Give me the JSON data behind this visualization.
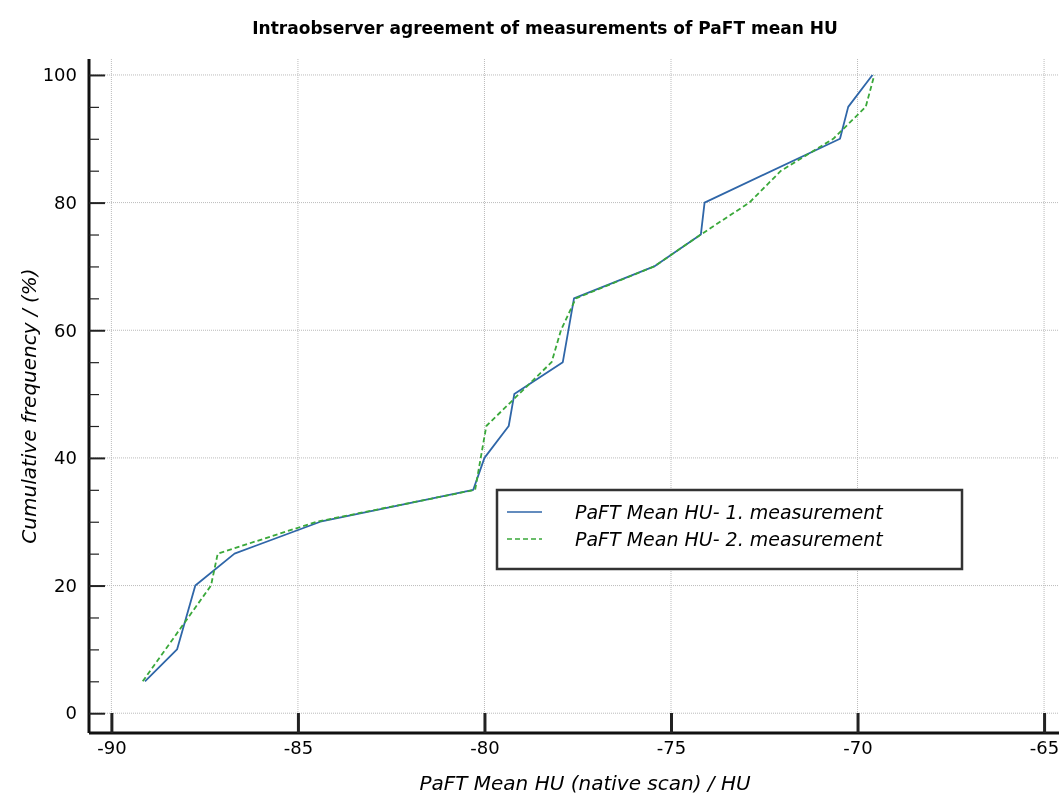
{
  "chart_data": {
    "type": "line",
    "title": "Intraobserver agreement of measurements of PaFT mean HU",
    "xlabel": "PaFT Mean HU (native scan) / HU",
    "ylabel": "Cumulative  frequency / (%)",
    "xlim": [
      -90.6,
      -64.6
    ],
    "xticks": [
      -90,
      -85,
      -80,
      -75,
      -70,
      -65
    ],
    "ylim": [
      -3.1,
      102.5
    ],
    "yticks": [
      0,
      {
        "value": 5,
        "label": null
      },
      {
        "value": 10,
        "label": null
      },
      {
        "value": 15,
        "label": null
      },
      20,
      {
        "value": 25,
        "label": null
      },
      {
        "value": 30,
        "label": null
      },
      {
        "value": 35,
        "label": null
      },
      40,
      {
        "value": 45,
        "label": null
      },
      {
        "value": 50,
        "label": null
      },
      {
        "value": 55,
        "label": null
      },
      60,
      {
        "value": 65,
        "label": null
      },
      {
        "value": 70,
        "label": null
      },
      {
        "value": 75,
        "label": null
      },
      80,
      {
        "value": 85,
        "label": null
      },
      {
        "value": 90,
        "label": null
      },
      {
        "value": 95,
        "label": null
      },
      100
    ],
    "grid": true,
    "legend": "right",
    "marker": "none",
    "series": [
      {
        "name": "PaFT Mean HU- 1. measurement",
        "color": "#2f66a8",
        "line_style": "solid",
        "x": [
          -89.1,
          -88.24,
          -87.75,
          -86.7,
          -84.4,
          -80.3,
          -80,
          -79.35,
          -79.2,
          -77.9,
          -77.6,
          -75.45,
          -74.2,
          -74.1,
          -70.47,
          -70.25,
          -69.6
        ],
        "values": [
          5,
          10,
          20,
          25,
          30,
          35,
          40,
          45,
          50,
          55,
          65,
          70,
          75,
          80,
          90,
          95,
          100
        ]
      },
      {
        "name": "PaFT Mean HU- 2. measurement",
        "color": "#3aa83a",
        "line_style": "dashed",
        "x": [
          -89.16,
          -87.33,
          -87.15,
          -84.5,
          -80.25,
          -79.95,
          -78.2,
          -77.95,
          -77.55,
          -75.45,
          -74.2,
          -72.9,
          -72.05,
          -70.65,
          -69.78,
          -69.55
        ],
        "values": [
          5,
          20,
          25,
          30,
          35,
          45,
          55,
          60,
          65,
          70,
          75,
          80,
          85,
          90,
          95,
          100
        ]
      }
    ]
  }
}
